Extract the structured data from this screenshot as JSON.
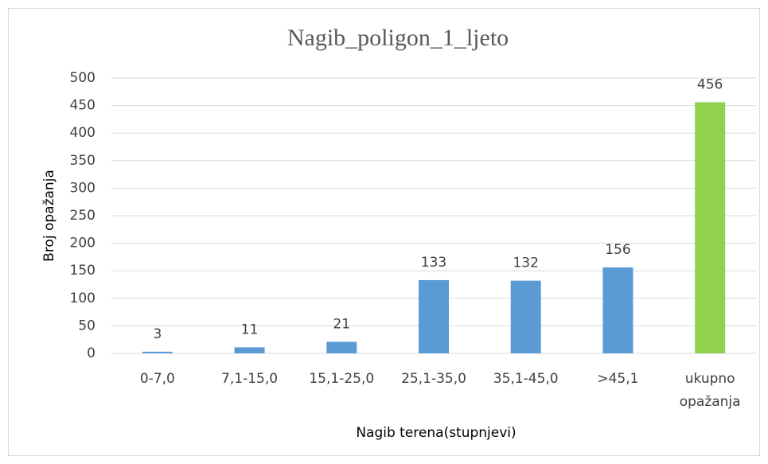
{
  "chart_data": {
    "type": "bar",
    "title": "Nagib_poligon_1_ljeto",
    "x_label": "Nagib terena(stupnjevi)",
    "y_label": "Broj opažanja",
    "categories": [
      "0-7,0",
      "7,1-15,0",
      "15,1-25,0",
      "25,1-35,0",
      "35,1-45,0",
      ">45,1",
      "ukupno opažanja"
    ],
    "values": [
      3,
      11,
      21,
      133,
      132,
      156,
      456
    ],
    "colors": [
      "#5b9bd5",
      "#5b9bd5",
      "#5b9bd5",
      "#5b9bd5",
      "#5b9bd5",
      "#5b9bd5",
      "#92d050"
    ],
    "ylim": [
      0,
      500
    ],
    "yticks": [
      0,
      50,
      100,
      150,
      200,
      250,
      300,
      350,
      400,
      450,
      500
    ],
    "grid": true
  }
}
